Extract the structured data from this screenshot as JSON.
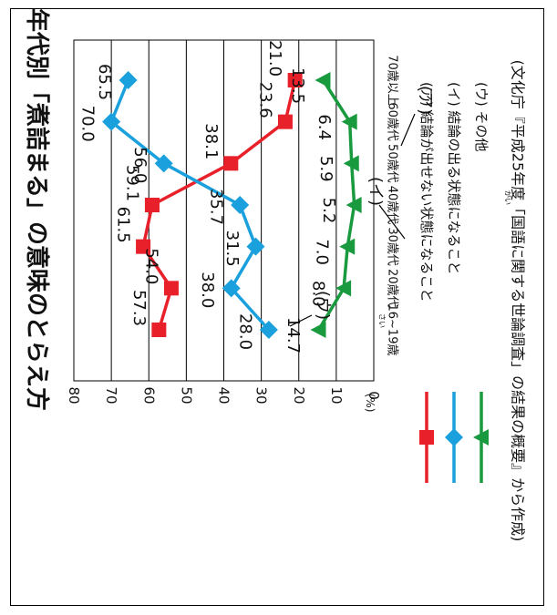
{
  "chart_data": {
    "type": "line",
    "orientation": "rotated-90-clockwise",
    "title": "年代別「煮詰まる」の意味のとらえ方",
    "categories": [
      "16~19歳",
      "20歳代",
      "30歳代",
      "40歳代",
      "50歳代",
      "60歳代",
      "70歳以上"
    ],
    "furigana": [
      {
        "category": "16~19歳",
        "text": "さい"
      }
    ],
    "yunit": "(%)",
    "yticks": [
      0,
      10,
      20,
      30,
      40,
      50,
      60,
      70,
      80
    ],
    "ylim": [
      0,
      80
    ],
    "grid": true,
    "series": [
      {
        "name": "(ア) 結論が出せない状態になること",
        "short": "(ア)",
        "color": "#e8202a",
        "marker": "square",
        "values": [
          57.3,
          54.0,
          61.5,
          59.1,
          38.1,
          23.6,
          21.0
        ],
        "labels": [
          "57.3",
          "54.0",
          "61.5",
          "59.1",
          "38.1",
          "23.6",
          "21.0"
        ]
      },
      {
        "name": "(イ) 結論の出る状態になること",
        "short": "(イ)",
        "color": "#1aa0dc",
        "marker": "diamond",
        "values": [
          28.0,
          38.0,
          31.5,
          35.7,
          56.0,
          70.0,
          65.5
        ],
        "labels": [
          "28.0",
          "38.0",
          "31.5",
          "35.7",
          "56.0",
          "70.0",
          "65.5"
        ]
      },
      {
        "name": "(ウ) その他",
        "short": "(ウ)",
        "color": "#1a9a3e",
        "marker": "triangle",
        "values": [
          14.7,
          8.0,
          7.0,
          5.2,
          5.9,
          6.4,
          13.5
        ],
        "labels": [
          "14.7",
          "8.0",
          "7.0",
          "5.2",
          "5.9",
          "6.4",
          "13.5"
        ]
      }
    ],
    "source": "(文化庁『平成25年度「国語に関する世論調査」の結果の概要』から作成)",
    "source_furigana": "がい"
  }
}
